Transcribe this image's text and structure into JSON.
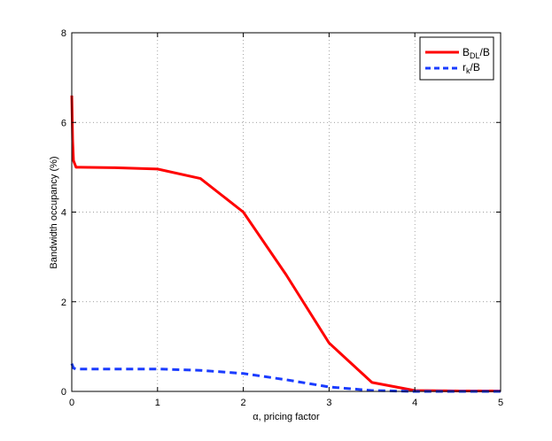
{
  "chart_data": {
    "type": "line",
    "xlabel": "α, pricing factor",
    "ylabel": "Bandwidth occupancy (%)",
    "xlim": [
      0,
      5
    ],
    "ylim": [
      0,
      8
    ],
    "xticks": [
      "0",
      "1",
      "2",
      "3",
      "4",
      "5"
    ],
    "yticks": [
      "0",
      "2",
      "4",
      "6",
      "8"
    ],
    "grid": true,
    "legend_position": "top-right",
    "series": [
      {
        "name_main": "B",
        "name_sub": "DL",
        "name_tail": "/B",
        "color": "#ff0000",
        "style": "solid",
        "x": [
          0,
          0.01,
          0.02,
          0.05,
          0.1,
          0.5,
          1.0,
          1.5,
          2.0,
          2.5,
          3.0,
          3.5,
          4.0,
          4.5,
          5.0
        ],
        "y": [
          6.6,
          5.6,
          5.15,
          5.0,
          5.0,
          4.99,
          4.96,
          4.75,
          4.0,
          2.6,
          1.08,
          0.2,
          0.02,
          0.01,
          0.01
        ]
      },
      {
        "name_main": "r",
        "name_sub": "k",
        "name_tail": "/B",
        "color": "#1a3cff",
        "style": "dashed",
        "x": [
          0,
          0.02,
          0.05,
          0.5,
          1.0,
          1.5,
          2.0,
          2.5,
          3.0,
          3.5,
          4.0,
          4.5,
          5.0
        ],
        "y": [
          0.62,
          0.52,
          0.5,
          0.5,
          0.5,
          0.47,
          0.4,
          0.26,
          0.1,
          0.02,
          0.0,
          0.0,
          0.0
        ]
      }
    ]
  }
}
